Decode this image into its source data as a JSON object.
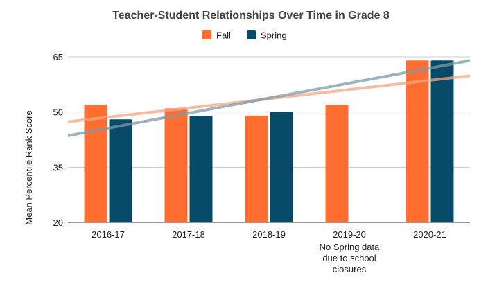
{
  "chart_data": {
    "type": "bar",
    "title": "Teacher-Student Relationships Over Time in Grade 8",
    "xlabel": "",
    "ylabel": "Mean Percentile Rank Score",
    "ylim": [
      20,
      65
    ],
    "yticks": [
      20,
      35,
      50,
      65
    ],
    "grid": "horizontal",
    "legend_position": "top",
    "categories": [
      "2016-17",
      "2017-18",
      "2018-19",
      "2019-20",
      "2020-21"
    ],
    "category_notes": [
      "",
      "",
      "",
      "No Spring data|due to school|closures",
      ""
    ],
    "series": [
      {
        "name": "Fall",
        "color": "#ff6d31",
        "values": [
          52,
          51,
          49,
          52,
          64
        ]
      },
      {
        "name": "Spring",
        "color": "#074b69",
        "values": [
          48,
          49,
          50,
          null,
          64
        ]
      }
    ],
    "trendlines": [
      {
        "series": "Fall",
        "color": "#f4a582",
        "opacity": 0.75
      },
      {
        "series": "Spring",
        "color": "#7c9aa8",
        "opacity": 0.75
      }
    ]
  }
}
